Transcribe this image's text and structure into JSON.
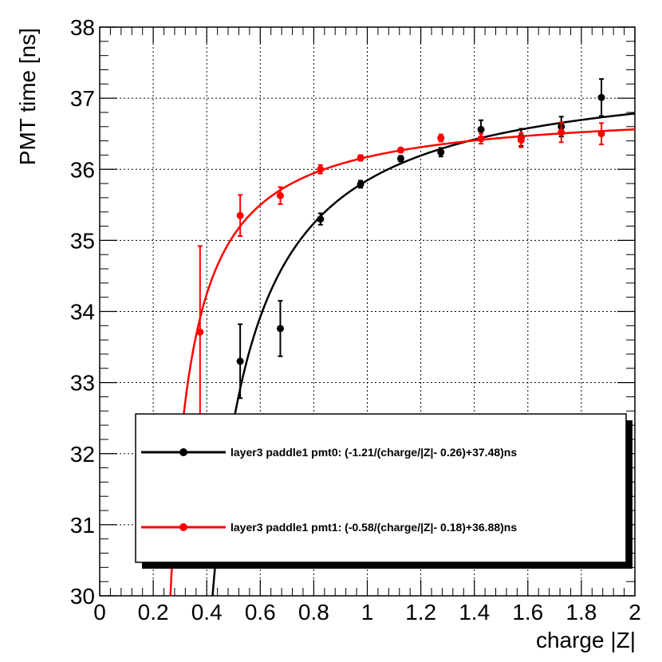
{
  "chart_data": {
    "type": "scatter",
    "xlabel": "charge |Z|",
    "ylabel": "PMT time [ns]",
    "xlim": [
      0,
      2
    ],
    "ylim": [
      30,
      38
    ],
    "x_ticks": [
      "0",
      "0.2",
      "0.4",
      "0.6",
      "0.8",
      "1",
      "1.2",
      "1.4",
      "1.6",
      "1.8",
      "2"
    ],
    "y_ticks": [
      "30",
      "31",
      "32",
      "33",
      "34",
      "35",
      "36",
      "37",
      "38"
    ],
    "grid": true,
    "legend_position": "bottom",
    "series": [
      {
        "name": "layer3 paddle1 pmt0: (-1.21/(charge/|Z|- 0.26)+37.48)ns",
        "color": "#000000",
        "fit": {
          "a": -1.21,
          "b": 0.26,
          "c": 37.48
        },
        "points": [
          {
            "x": 0.525,
            "y": 33.3,
            "err": 0.52
          },
          {
            "x": 0.675,
            "y": 33.76,
            "err": 0.39
          },
          {
            "x": 0.825,
            "y": 35.3,
            "err": 0.08
          },
          {
            "x": 0.975,
            "y": 35.79,
            "err": 0.05
          },
          {
            "x": 1.125,
            "y": 36.15,
            "err": 0.04
          },
          {
            "x": 1.275,
            "y": 36.24,
            "err": 0.06
          },
          {
            "x": 1.425,
            "y": 36.56,
            "err": 0.13
          },
          {
            "x": 1.575,
            "y": 36.45,
            "err": 0.12
          },
          {
            "x": 1.725,
            "y": 36.6,
            "err": 0.14
          },
          {
            "x": 1.875,
            "y": 37.01,
            "err": 0.26
          }
        ]
      },
      {
        "name": "layer3 paddle1 pmt1: (-0.58/(charge/|Z|- 0.18)+36.88)ns",
        "color": "#ff0000",
        "fit": {
          "a": -0.58,
          "b": 0.18,
          "c": 36.88
        },
        "points": [
          {
            "x": 0.375,
            "y": 33.71,
            "err": 1.21
          },
          {
            "x": 0.525,
            "y": 35.35,
            "err": 0.29
          },
          {
            "x": 0.675,
            "y": 35.63,
            "err": 0.12
          },
          {
            "x": 0.825,
            "y": 36.0,
            "err": 0.06
          },
          {
            "x": 0.975,
            "y": 36.16,
            "err": 0.04
          },
          {
            "x": 1.125,
            "y": 36.27,
            "err": 0.03
          },
          {
            "x": 1.275,
            "y": 36.44,
            "err": 0.05
          },
          {
            "x": 1.425,
            "y": 36.43,
            "err": 0.07
          },
          {
            "x": 1.575,
            "y": 36.41,
            "err": 0.1
          },
          {
            "x": 1.725,
            "y": 36.52,
            "err": 0.14
          },
          {
            "x": 1.875,
            "y": 36.5,
            "err": 0.15
          }
        ]
      }
    ]
  }
}
